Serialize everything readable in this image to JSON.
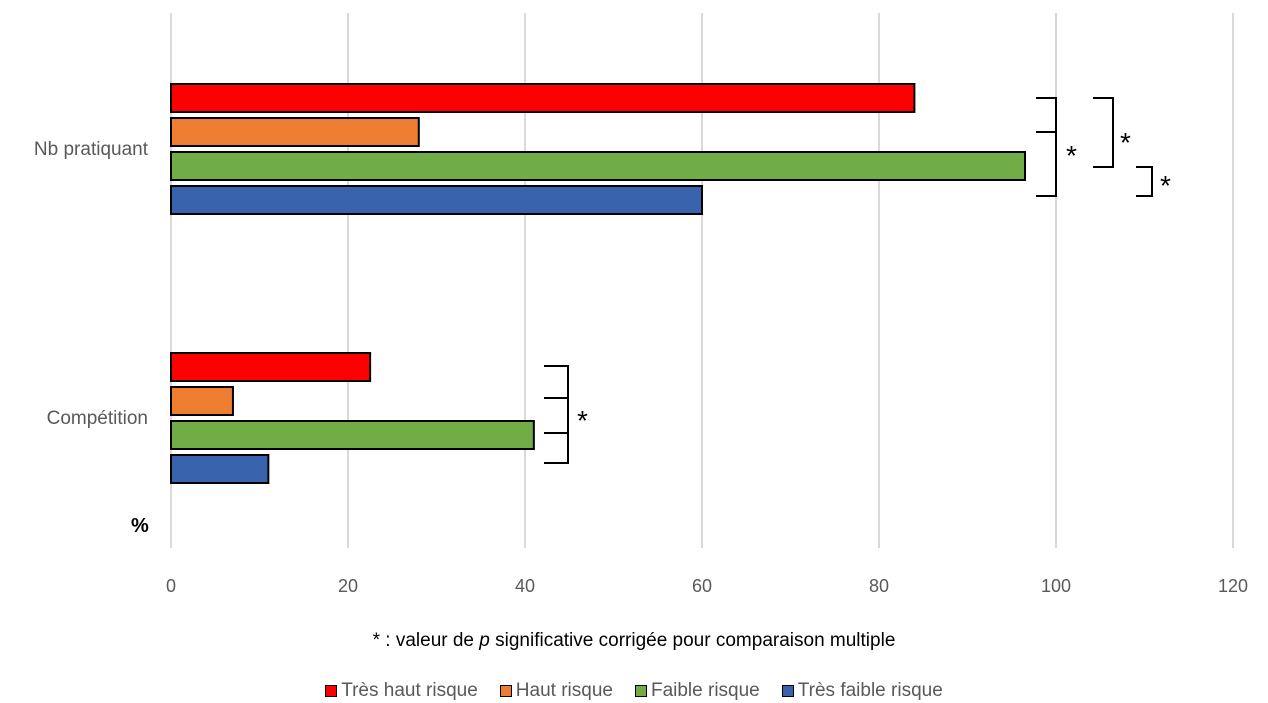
{
  "chart_data": {
    "type": "bar",
    "orientation": "horizontal",
    "categories": [
      "Nb pratiquant",
      "Compétition"
    ],
    "series": [
      {
        "name": "Très haut risque",
        "color": "#ff0000",
        "values": [
          84,
          22.5
        ]
      },
      {
        "name": "Haut risque",
        "color": "#ed7d31",
        "values": [
          28,
          7
        ]
      },
      {
        "name": "Faible risque",
        "color": "#70ad47",
        "values": [
          96.5,
          41
        ]
      },
      {
        "name": "Très faible risque",
        "color": "#3a63ad",
        "values": [
          60,
          11
        ]
      }
    ],
    "xlim": [
      0,
      120
    ],
    "xticks": [
      "0",
      "20",
      "40",
      "60",
      "80",
      "100",
      "120"
    ],
    "unit_label": "%",
    "grid": true,
    "legend_position": "bottom",
    "significance_marker": "*",
    "footnote": {
      "prefix": "* : valeur de ",
      "italic": "p",
      "suffix": " significative corrigée pour comparaison multiple"
    }
  }
}
